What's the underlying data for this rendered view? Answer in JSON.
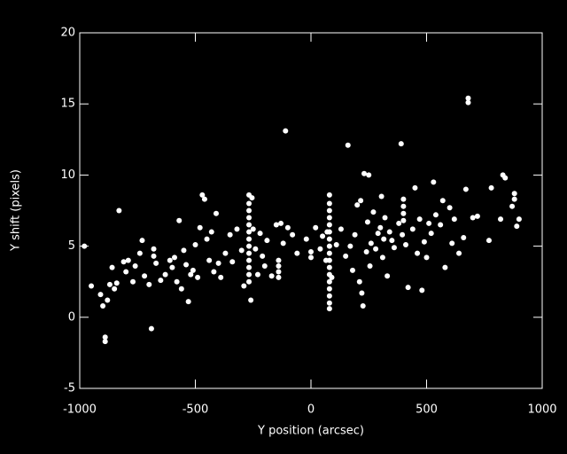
{
  "chart_data": {
    "type": "scatter",
    "color": "#ffffff",
    "xlabel": "Y position (arcsec)",
    "ylabel": "Y shift (pixels)",
    "xlim": [
      -1000,
      1000
    ],
    "ylim": [
      -5,
      20
    ],
    "xticks": [
      -1000,
      -500,
      0,
      500,
      1000
    ],
    "yticks": [
      -5,
      0,
      5,
      10,
      15,
      20
    ],
    "x": [
      -980,
      -950,
      -910,
      -900,
      -890,
      -890,
      -880,
      -870,
      -860,
      -850,
      -840,
      -830,
      -810,
      -800,
      -790,
      -770,
      -760,
      -740,
      -730,
      -720,
      -700,
      -690,
      -680,
      -680,
      -670,
      -650,
      -630,
      -610,
      -600,
      -590,
      -580,
      -570,
      -560,
      -550,
      -540,
      -530,
      -520,
      -510,
      -500,
      -490,
      -480,
      -470,
      -460,
      -450,
      -440,
      -430,
      -420,
      -410,
      -400,
      -390,
      -370,
      -350,
      -340,
      -320,
      -300,
      -290,
      -268,
      -268,
      -268,
      -268,
      -268,
      -268,
      -268,
      -268,
      -268,
      -268,
      -268,
      -268,
      -268,
      -260,
      -255,
      -250,
      -240,
      -230,
      -220,
      -210,
      -200,
      -190,
      -170,
      -140,
      -140,
      -140,
      -140,
      -150,
      -130,
      -120,
      -110,
      -100,
      -80,
      -60,
      -20,
      0,
      0,
      20,
      40,
      50,
      80,
      80,
      80,
      80,
      80,
      80,
      80,
      80,
      80,
      80,
      80,
      80,
      80,
      80,
      80,
      80,
      80,
      70,
      65,
      90,
      110,
      130,
      150,
      160,
      170,
      180,
      190,
      200,
      210,
      215,
      220,
      225,
      230,
      240,
      245,
      250,
      255,
      260,
      270,
      280,
      290,
      300,
      305,
      310,
      315,
      320,
      330,
      340,
      350,
      360,
      380,
      390,
      395,
      400,
      400,
      400,
      400,
      410,
      420,
      440,
      450,
      460,
      470,
      480,
      490,
      500,
      510,
      520,
      530,
      540,
      560,
      570,
      580,
      600,
      610,
      620,
      640,
      660,
      670,
      680,
      680,
      700,
      720,
      770,
      780,
      820,
      830,
      840,
      870,
      880,
      880,
      890,
      900
    ],
    "values": [
      5.0,
      2.2,
      1.6,
      0.8,
      -1.4,
      -1.7,
      1.2,
      2.3,
      3.5,
      2.0,
      2.4,
      7.5,
      3.9,
      3.2,
      4.0,
      2.5,
      3.6,
      4.5,
      5.4,
      2.9,
      2.3,
      -0.8,
      4.8,
      4.3,
      3.8,
      2.6,
      3.0,
      4.0,
      3.5,
      4.2,
      2.5,
      6.8,
      2.0,
      4.7,
      3.7,
      1.1,
      3.0,
      3.3,
      5.1,
      2.8,
      6.3,
      8.6,
      8.3,
      5.5,
      4.0,
      6.0,
      3.2,
      7.3,
      3.8,
      2.8,
      4.5,
      5.8,
      3.9,
      6.2,
      4.7,
      2.2,
      8.6,
      8.0,
      7.5,
      7.0,
      6.5,
      6.0,
      5.5,
      5.0,
      4.5,
      4.0,
      3.5,
      3.0,
      2.5,
      1.2,
      8.4,
      6.2,
      4.8,
      3.0,
      5.9,
      4.3,
      3.6,
      5.4,
      2.9,
      4.0,
      3.6,
      3.2,
      2.8,
      6.5,
      6.6,
      5.2,
      13.1,
      6.3,
      5.8,
      4.5,
      5.5,
      4.6,
      4.2,
      6.3,
      4.8,
      5.7,
      8.6,
      8.0,
      7.5,
      7.0,
      6.5,
      6.0,
      5.5,
      5.0,
      4.5,
      4.0,
      3.5,
      3.0,
      2.5,
      2.0,
      1.5,
      1.0,
      0.6,
      6.0,
      4.0,
      2.8,
      5.1,
      6.2,
      4.3,
      12.1,
      5.0,
      3.3,
      5.8,
      7.9,
      2.5,
      8.2,
      1.7,
      0.8,
      10.1,
      4.6,
      6.7,
      10.0,
      3.6,
      5.2,
      7.4,
      4.8,
      5.9,
      6.3,
      8.5,
      4.2,
      5.5,
      7.0,
      2.9,
      6.0,
      5.4,
      4.9,
      6.6,
      12.2,
      5.8,
      8.3,
      7.8,
      7.3,
      6.8,
      5.1,
      2.1,
      6.2,
      9.1,
      4.5,
      6.9,
      1.9,
      5.3,
      4.2,
      6.6,
      5.9,
      9.5,
      7.2,
      6.5,
      8.2,
      3.5,
      7.7,
      5.2,
      6.9,
      4.5,
      5.6,
      9.0,
      15.4,
      15.1,
      7.0,
      7.1,
      5.4,
      9.1,
      6.9,
      10.0,
      9.8,
      7.8,
      8.7,
      8.3,
      6.4,
      6.9
    ]
  }
}
